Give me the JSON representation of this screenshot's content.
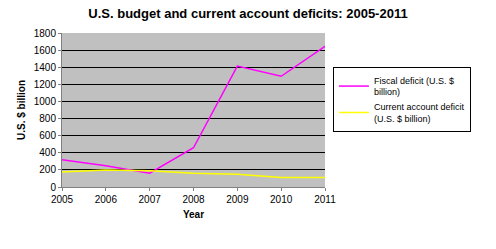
{
  "chart_data": {
    "type": "line",
    "title": "U.S. budget and current account deficits: 2005-2011",
    "x_label": "Year",
    "y_label": "U.S. $ billion",
    "categories": [
      "2005",
      "2006",
      "2007",
      "2008",
      "2009",
      "2010",
      "2011"
    ],
    "series": [
      {
        "name": "Fiscal deficit (U.S. $ billion)",
        "color": "#ff00ff",
        "values": [
          318,
          248,
          161,
          459,
          1413,
          1294,
          1645
        ]
      },
      {
        "name": "Current account deficit (U.S. $ billion)",
        "color": "#ffff00",
        "values": [
          175,
          200,
          190,
          160,
          150,
          110,
          110
        ]
      }
    ],
    "ylim": [
      0,
      1800
    ],
    "yticks": [
      0,
      200,
      400,
      600,
      800,
      1000,
      1200,
      1400,
      1600,
      1800
    ],
    "grid": true,
    "legend": "right"
  }
}
